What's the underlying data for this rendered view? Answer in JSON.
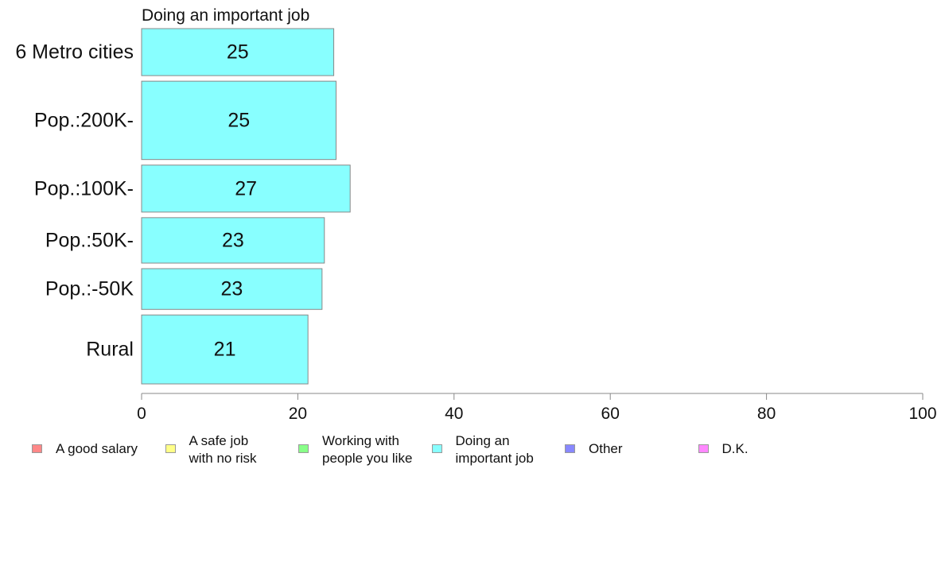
{
  "chart_data": {
    "type": "bar",
    "orientation": "horizontal",
    "title": "Doing an important job",
    "categories": [
      "6 Metro cities",
      "Pop.:200K-",
      "Pop.:100K-",
      "Pop.:50K-",
      "Pop.:-50K",
      "Rural"
    ],
    "values": [
      24.6,
      24.9,
      26.7,
      23.4,
      23.1,
      21.3
    ],
    "data_labels": [
      "25",
      "25",
      "27",
      "23",
      "23",
      "21"
    ],
    "bar_weights": [
      3,
      5,
      3,
      2.9,
      2.6,
      4.4
    ],
    "xlim": [
      0,
      100
    ],
    "xticks": [
      "0",
      "20",
      "40",
      "60",
      "80",
      "100"
    ],
    "xlabel": "",
    "ylabel": "",
    "grid": false,
    "bar_color": "#88ffff",
    "legend_position": "bottom",
    "legend": [
      {
        "label": "A good salary",
        "color": "#ff8888"
      },
      {
        "label": "A safe job\nwith no risk",
        "color": "#ffff88"
      },
      {
        "label": "Working with\npeople you like",
        "color": "#88ff88"
      },
      {
        "label": "Doing an\nimportant job",
        "color": "#88ffff"
      },
      {
        "label": "Other",
        "color": "#8888ff"
      },
      {
        "label": "D.K.",
        "color": "#ff88ff"
      }
    ]
  }
}
